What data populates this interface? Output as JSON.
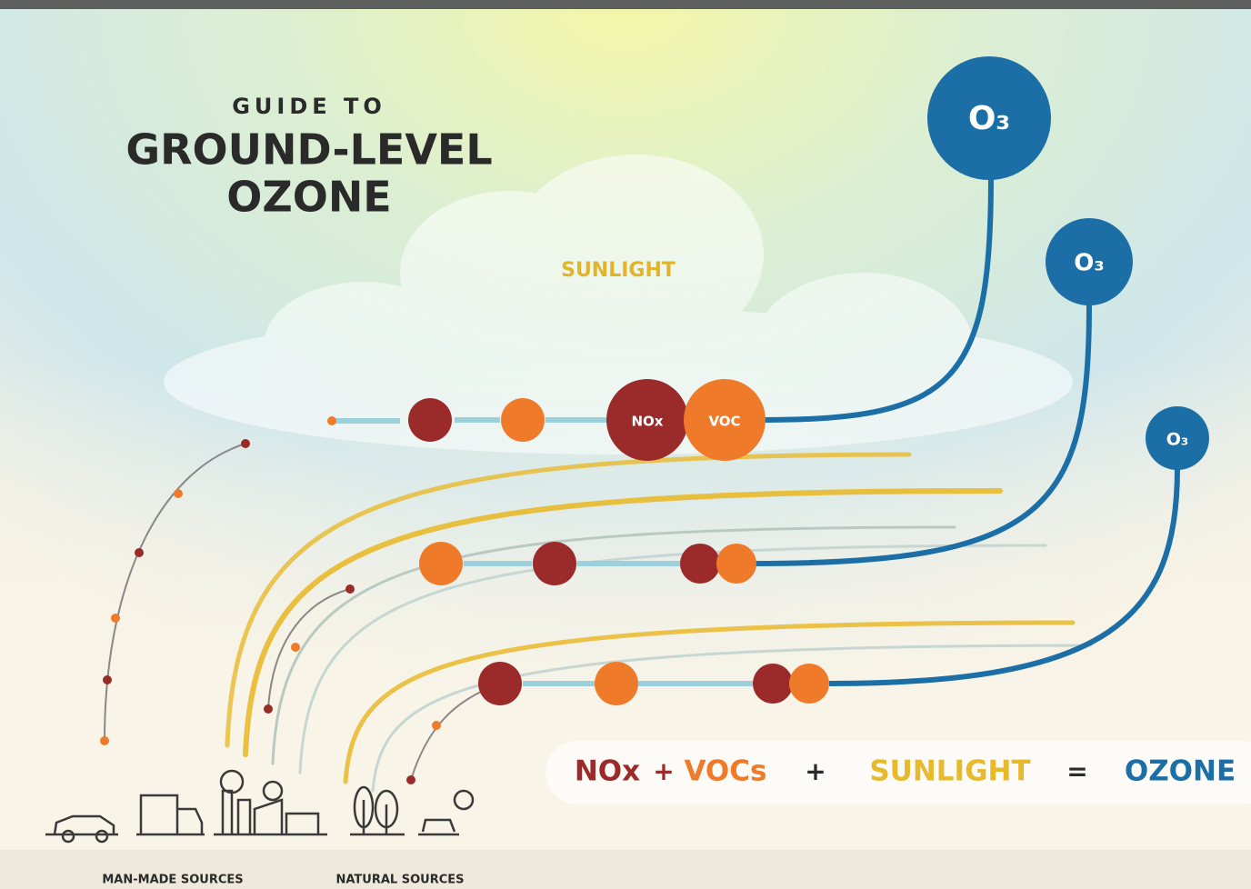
{
  "header": {
    "kicker": "GUIDE TO",
    "title_line1": "GROUND-LEVEL",
    "title_line2": "OZONE"
  },
  "sunlight_label": "SUNLIGHT",
  "ozone_molecules": [
    {
      "label": "O₃"
    },
    {
      "label": "O₃"
    },
    {
      "label": "O₃"
    }
  ],
  "reactants": {
    "nox": "NOx",
    "voc": "VOC"
  },
  "equation": {
    "nox": "NOx",
    "plus1": "+",
    "vocs": "VOCs",
    "plus2": "+",
    "sunlight": "SUNLIGHT",
    "equals": "=",
    "ozone": "OZONE"
  },
  "sources": {
    "man_made": "MAN-MADE SOURCES",
    "natural": "NATURAL SOURCES"
  }
}
